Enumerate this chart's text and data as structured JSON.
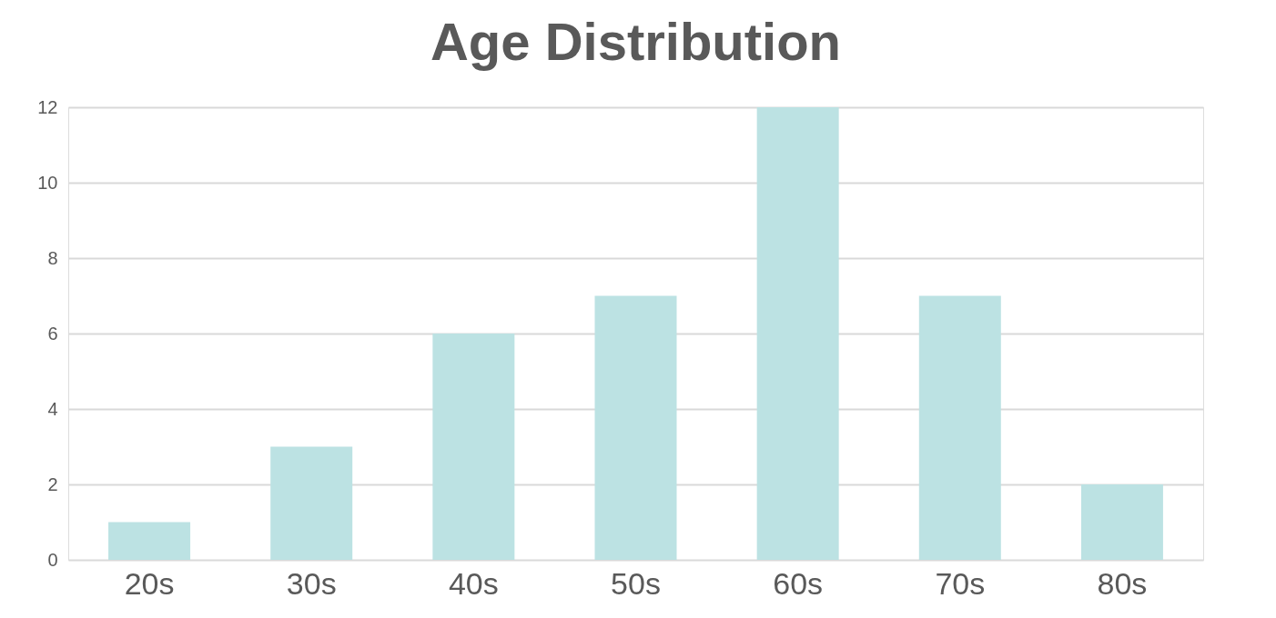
{
  "chart_data": {
    "type": "bar",
    "title": "Age Distribution",
    "categories": [
      "20s",
      "30s",
      "40s",
      "50s",
      "60s",
      "70s",
      "80s"
    ],
    "values": [
      1,
      3,
      6,
      7,
      12,
      7,
      2
    ],
    "color": "#bce2e3",
    "ylim": [
      0,
      12
    ],
    "yticks": [
      0,
      2,
      4,
      6,
      8,
      10,
      12
    ],
    "grid": "y"
  }
}
